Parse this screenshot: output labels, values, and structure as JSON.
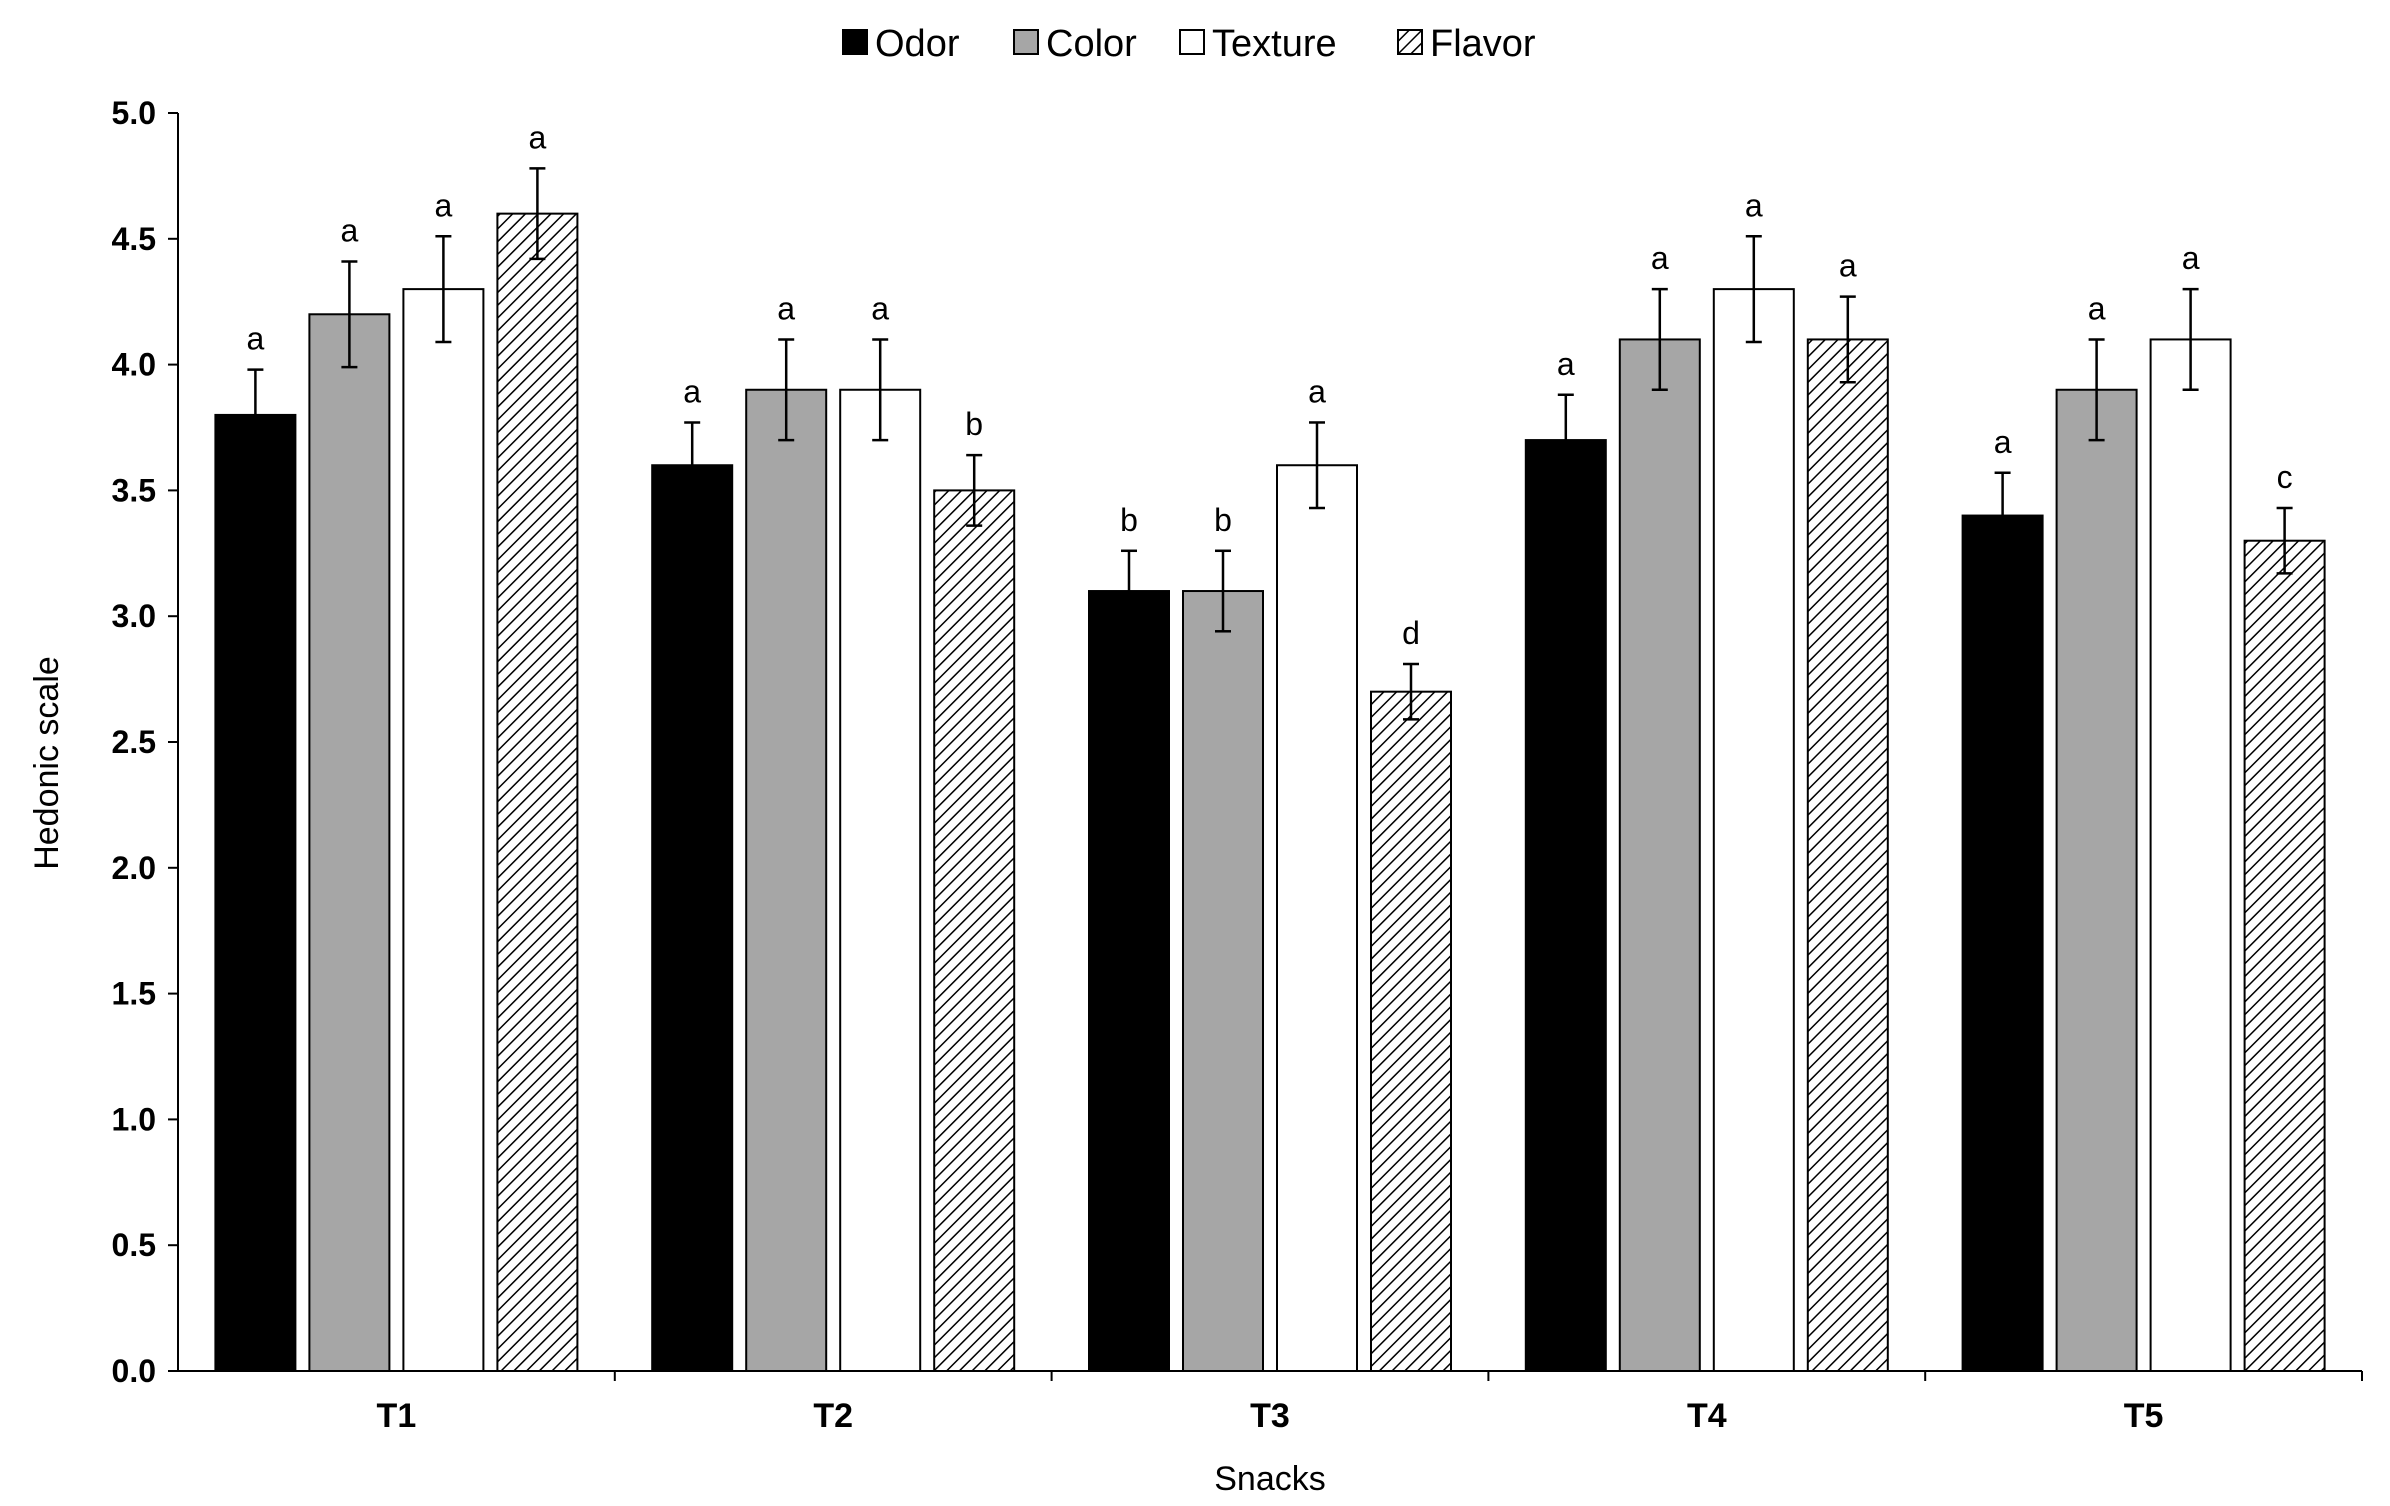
{
  "chart_data": {
    "type": "bar",
    "categories": [
      "T1",
      "T2",
      "T3",
      "T4",
      "T5"
    ],
    "series": [
      {
        "name": "Odor",
        "color": "#000000",
        "pattern": "solid",
        "values": [
          3.8,
          3.6,
          3.1,
          3.7,
          3.4
        ],
        "errors": [
          0.18,
          0.17,
          0.16,
          0.18,
          0.17
        ],
        "labels": [
          "a",
          "a",
          "b",
          "a",
          "a"
        ]
      },
      {
        "name": "Color",
        "color": "#a6a6a6",
        "pattern": "solid",
        "values": [
          4.2,
          3.9,
          3.1,
          4.1,
          3.9
        ],
        "errors": [
          0.21,
          0.2,
          0.16,
          0.2,
          0.2
        ],
        "labels": [
          "a",
          "a",
          "b",
          "a",
          "a"
        ]
      },
      {
        "name": "Texture",
        "color": "#ffffff",
        "pattern": "outline",
        "values": [
          4.3,
          3.9,
          3.6,
          4.3,
          4.1
        ],
        "errors": [
          0.21,
          0.2,
          0.17,
          0.21,
          0.2
        ],
        "labels": [
          "a",
          "a",
          "a",
          "a",
          "a"
        ]
      },
      {
        "name": "Flavor",
        "color": "#000000",
        "pattern": "diagonal-hatch",
        "values": [
          4.6,
          3.5,
          2.7,
          4.1,
          3.3
        ],
        "errors": [
          0.18,
          0.14,
          0.11,
          0.17,
          0.13
        ],
        "labels": [
          "a",
          "b",
          "d",
          "a",
          "c"
        ]
      }
    ],
    "xlabel": "Snacks",
    "ylabel": "Hedonic scale",
    "ylim": [
      0,
      5.0
    ],
    "yticks": [
      "0.0",
      "0.5",
      "1.0",
      "1.5",
      "2.0",
      "2.5",
      "3.0",
      "3.5",
      "4.0",
      "4.5",
      "5.0"
    ],
    "grid": false,
    "legend_position": "top-center"
  }
}
